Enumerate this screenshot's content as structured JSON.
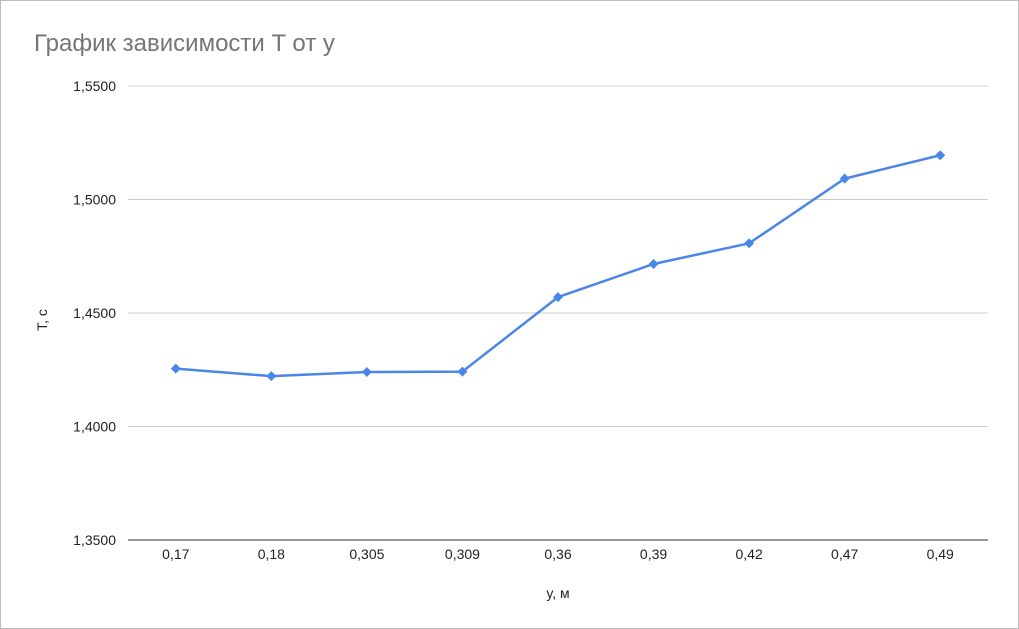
{
  "chart_data": {
    "type": "line",
    "title": "График зависимости T от y",
    "xlabel": "y, м",
    "ylabel": "T, c",
    "categories": [
      "0,17",
      "0,18",
      "0,305",
      "0,309",
      "0,36",
      "0,39",
      "0,42",
      "0,47",
      "0,49"
    ],
    "series": [
      {
        "values": [
          1.4255,
          1.4222,
          1.424,
          1.4242,
          1.457,
          1.4716,
          1.4807,
          1.5092,
          1.5195
        ],
        "color": "#4a86e8",
        "marker": "diamond"
      }
    ],
    "ylim": [
      1.35,
      1.55
    ],
    "yticks": [
      "1,3500",
      "1,4000",
      "1,4500",
      "1,5000",
      "1,5500"
    ],
    "grid": true,
    "legend": "none"
  }
}
